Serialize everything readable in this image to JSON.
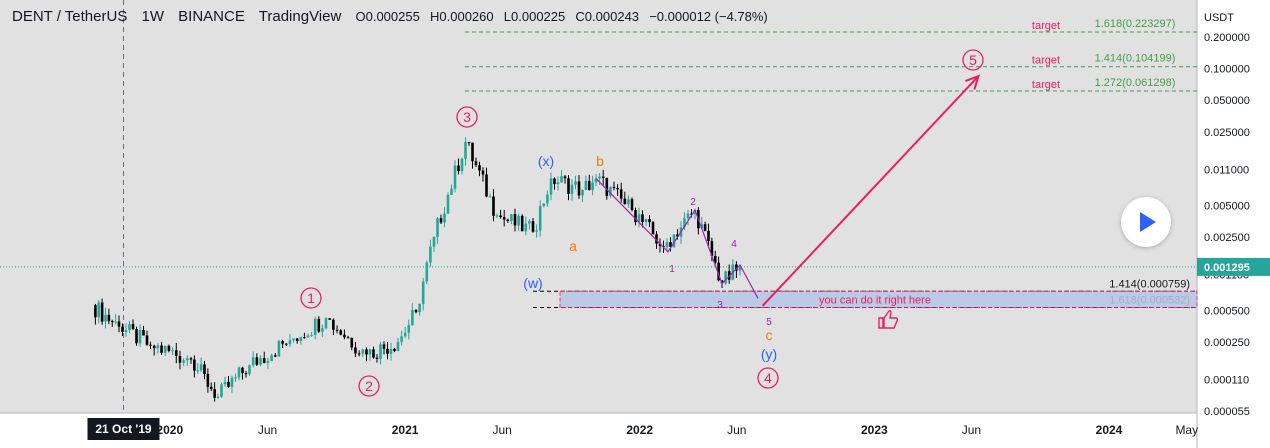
{
  "header": {
    "symbol": "DENT / TetherUS",
    "interval": "1W",
    "exchange": "BINANCE",
    "platform": "TradingView",
    "open": "O0.000255",
    "high": "H0.000260",
    "low": "L0.000225",
    "close": "C0.000243",
    "change": "−0.000012 (−4.78%)"
  },
  "colors": {
    "background": "#e1e1e1",
    "up_candle": "#26a69a",
    "down_candle": "#000000",
    "wave_primary": "#e91e63",
    "wave_blue": "#2962ff",
    "wave_orange": "#f57c00",
    "wave_purple": "#9c27b0",
    "fib_green": "#43a047",
    "price_tag": "#26a69a",
    "zone_fill": "#b7c6e6"
  },
  "play_button": {
    "icon": "play-icon"
  },
  "chart_data": {
    "type": "candlestick",
    "y_scale": "log",
    "y_unit": "USDT",
    "y_ticks": [
      "0.200000",
      "0.100000",
      "0.050000",
      "0.025000",
      "0.011000",
      "0.005000",
      "0.002500",
      "0.001100",
      "0.000500",
      "0.000250",
      "0.000110",
      "0.000055"
    ],
    "x_ticks": [
      "2020",
      "Jun",
      "2021",
      "Jun",
      "2022",
      "Jun",
      "2023",
      "Jun",
      "2024",
      "May"
    ],
    "crosshair_x_label": "21 Oct '19",
    "last_price": "0.001295",
    "path_points": [
      [
        "2019-09-02",
        0.00056
      ],
      [
        "2019-10-14",
        0.00035
      ],
      [
        "2019-12-02",
        0.00023
      ],
      [
        "2020-02-03",
        0.00017
      ],
      [
        "2020-03-16",
        7.5e-05
      ],
      [
        "2020-05-04",
        0.00015
      ],
      [
        "2020-07-06",
        0.00026
      ],
      [
        "2020-08-31",
        0.00042
      ],
      [
        "2020-11-02",
        0.00019
      ],
      [
        "2020-12-21",
        0.00025
      ],
      [
        "2021-01-18",
        0.00048
      ],
      [
        "2021-02-15",
        0.0025
      ],
      [
        "2021-04-05",
        0.02
      ],
      [
        "2021-05-24",
        0.004
      ],
      [
        "2021-07-19",
        0.0028
      ],
      [
        "2021-08-16",
        0.009
      ],
      [
        "2021-10-04",
        0.007
      ],
      [
        "2021-10-25",
        0.009
      ],
      [
        "2021-12-20",
        0.0045
      ],
      [
        "2022-02-07",
        0.002
      ],
      [
        "2022-03-28",
        0.0045
      ],
      [
        "2022-05-09",
        0.0009
      ],
      [
        "2022-06-06",
        0.0013
      ]
    ],
    "series": [
      {
        "name": "1.618",
        "value": 0.223297,
        "label": "1.618(0.223297)",
        "tag": "target"
      },
      {
        "name": "1.414",
        "value": 0.104199,
        "label": "1.414(0.104199)",
        "tag": "target"
      },
      {
        "name": "1.272",
        "value": 0.061298,
        "label": "1.272(0.061298)",
        "tag": "target"
      },
      {
        "name": "1.414",
        "value": 0.000759,
        "label": "1.414(0.000759)"
      },
      {
        "name": "1.618",
        "value": 0.000532,
        "label": "1.618(0.000532)"
      }
    ],
    "zone_text": "you can do it right here",
    "wave_labels": {
      "primary": [
        "1",
        "2",
        "3",
        "4",
        "5"
      ],
      "intermediate": [
        "(w)",
        "(x)",
        "(y)"
      ],
      "abc": [
        "a",
        "b",
        "c"
      ],
      "minor": [
        "1",
        "2",
        "3",
        "4",
        "5"
      ]
    },
    "projection": {
      "from": [
        "2022-07-11",
        0.00055
      ],
      "to": [
        "2023-06-12",
        0.085
      ]
    }
  }
}
